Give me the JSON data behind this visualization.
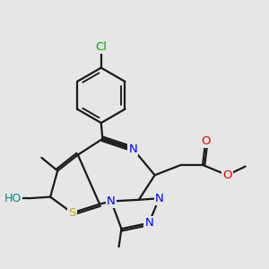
{
  "bg_color": "#e6e6e6",
  "bond_color": "#1a1a1a",
  "bond_width": 1.6,
  "dbo": 0.07,
  "atom_colors": {
    "N": "#0000ee",
    "O": "#dd0000",
    "S": "#bbaa00",
    "Cl": "#00aa00",
    "HO": "#008888"
  },
  "fs": 9.5
}
